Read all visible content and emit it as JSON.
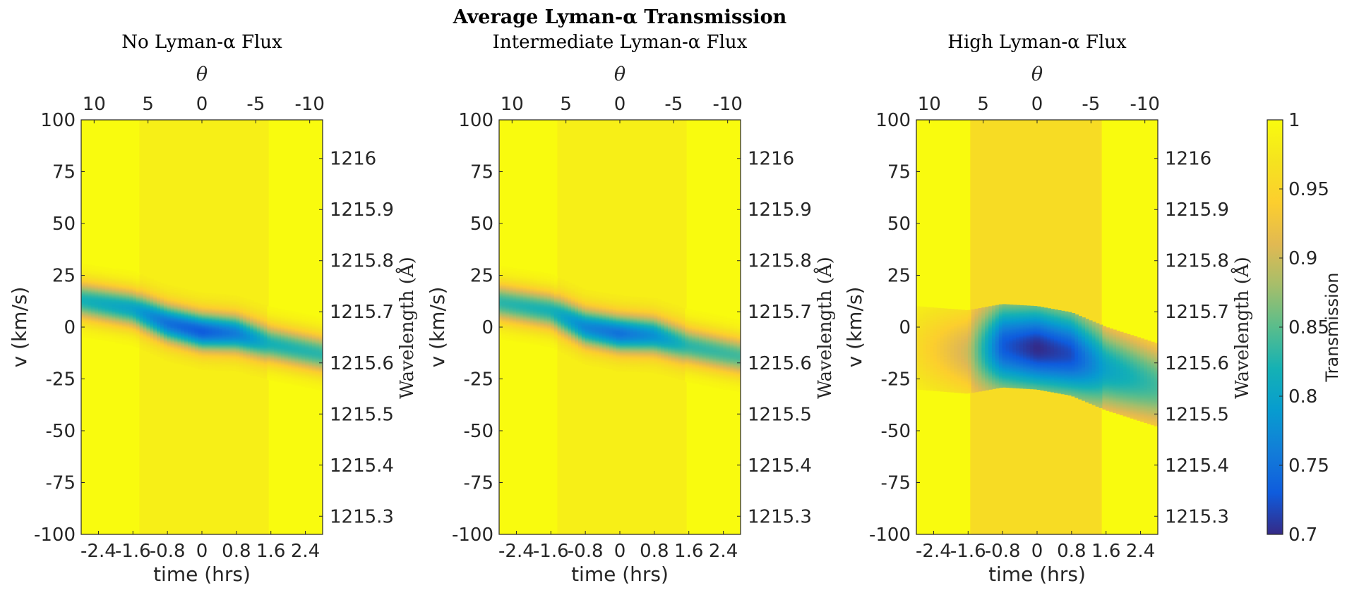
{
  "figure": {
    "title": "Average Lyman-α Transmission",
    "colorbar": {
      "label": "Transmission",
      "ticks": [
        0.7,
        0.75,
        0.8,
        0.85,
        0.9,
        0.95,
        1
      ]
    }
  },
  "chart_data": [
    {
      "type": "heatmap",
      "title": "No Lyman-α Flux",
      "xlabel": "time (hrs)",
      "ylabel": "v (km/s)",
      "x2label": "θ",
      "y2label": "Wavelength (Å)",
      "xlim": [
        -2.8,
        2.8
      ],
      "ylim": [
        -100,
        100
      ],
      "x_ticks": [
        -2.4,
        -1.6,
        -0.8,
        0,
        0.8,
        1.6,
        2.4
      ],
      "y_ticks": [
        -100,
        -75,
        -50,
        -25,
        0,
        25,
        50,
        75,
        100
      ],
      "theta_ticks": [
        10,
        5,
        0,
        -5,
        -10
      ],
      "wavelength_ticks": [
        1215.3,
        1215.4,
        1215.5,
        1215.6,
        1215.7,
        1215.8,
        1215.9,
        1216
      ],
      "transit_band": {
        "x_range": [
          -1.45,
          1.55
        ],
        "transmission": 0.985
      },
      "background_transmission": 1.0,
      "absorption_track": [
        {
          "x": -2.8,
          "v_center": 13,
          "min_transmission": 0.82
        },
        {
          "x": -1.6,
          "v_center": 9,
          "min_transmission": 0.8
        },
        {
          "x": -0.8,
          "v_center": 2,
          "min_transmission": 0.75
        },
        {
          "x": 0.0,
          "v_center": -2,
          "min_transmission": 0.73
        },
        {
          "x": 0.8,
          "v_center": -3,
          "min_transmission": 0.76
        },
        {
          "x": 1.6,
          "v_center": -8,
          "min_transmission": 0.82
        },
        {
          "x": 2.8,
          "v_center": -13,
          "min_transmission": 0.83
        }
      ]
    },
    {
      "type": "heatmap",
      "title": "Intermediate Lyman-α Flux",
      "xlabel": "time (hrs)",
      "ylabel": "v (km/s)",
      "x2label": "θ",
      "y2label": "Wavelength (Å)",
      "xlim": [
        -2.8,
        2.8
      ],
      "ylim": [
        -100,
        100
      ],
      "x_ticks": [
        -2.4,
        -1.6,
        -0.8,
        0,
        0.8,
        1.6,
        2.4
      ],
      "y_ticks": [
        -100,
        -75,
        -50,
        -25,
        0,
        25,
        50,
        75,
        100
      ],
      "theta_ticks": [
        10,
        5,
        0,
        -5,
        -10
      ],
      "wavelength_ticks": [
        1215.3,
        1215.4,
        1215.5,
        1215.6,
        1215.7,
        1215.8,
        1215.9,
        1216
      ],
      "transit_band": {
        "x_range": [
          -1.45,
          1.55
        ],
        "transmission": 0.985
      },
      "background_transmission": 1.0,
      "absorption_track": [
        {
          "x": -2.8,
          "v_center": 12,
          "min_transmission": 0.83
        },
        {
          "x": -1.6,
          "v_center": 8,
          "min_transmission": 0.82
        },
        {
          "x": -0.8,
          "v_center": 0,
          "min_transmission": 0.77
        },
        {
          "x": 0.0,
          "v_center": -3,
          "min_transmission": 0.75
        },
        {
          "x": 0.8,
          "v_center": -4,
          "min_transmission": 0.78
        },
        {
          "x": 1.6,
          "v_center": -9,
          "min_transmission": 0.83
        },
        {
          "x": 2.8,
          "v_center": -14,
          "min_transmission": 0.84
        }
      ]
    },
    {
      "type": "heatmap",
      "title": "High Lyman-α Flux",
      "xlabel": "time (hrs)",
      "ylabel": "v (km/s)",
      "x2label": "θ",
      "y2label": "Wavelength (Å)",
      "xlim": [
        -2.8,
        2.8
      ],
      "ylim": [
        -100,
        100
      ],
      "x_ticks": [
        -2.4,
        -1.6,
        -0.8,
        0,
        0.8,
        1.6,
        2.4
      ],
      "y_ticks": [
        -100,
        -75,
        -50,
        -25,
        0,
        25,
        50,
        75,
        100
      ],
      "theta_ticks": [
        10,
        5,
        0,
        -5,
        -10
      ],
      "wavelength_ticks": [
        1215.3,
        1215.4,
        1215.5,
        1215.6,
        1215.7,
        1215.8,
        1215.9,
        1216
      ],
      "transit_band": {
        "x_range": [
          -1.55,
          1.5
        ],
        "transmission": 0.96
      },
      "background_transmission": 1.0,
      "absorption_track": [
        {
          "x": -2.8,
          "v_center": -10,
          "min_transmission": 0.96
        },
        {
          "x": -1.6,
          "v_center": -12,
          "min_transmission": 0.9
        },
        {
          "x": -0.8,
          "v_center": -9,
          "min_transmission": 0.73
        },
        {
          "x": 0.0,
          "v_center": -10,
          "min_transmission": 0.7
        },
        {
          "x": 0.8,
          "v_center": -13,
          "min_transmission": 0.72
        },
        {
          "x": 1.6,
          "v_center": -20,
          "min_transmission": 0.8
        },
        {
          "x": 2.8,
          "v_center": -28,
          "min_transmission": 0.84
        }
      ]
    }
  ]
}
